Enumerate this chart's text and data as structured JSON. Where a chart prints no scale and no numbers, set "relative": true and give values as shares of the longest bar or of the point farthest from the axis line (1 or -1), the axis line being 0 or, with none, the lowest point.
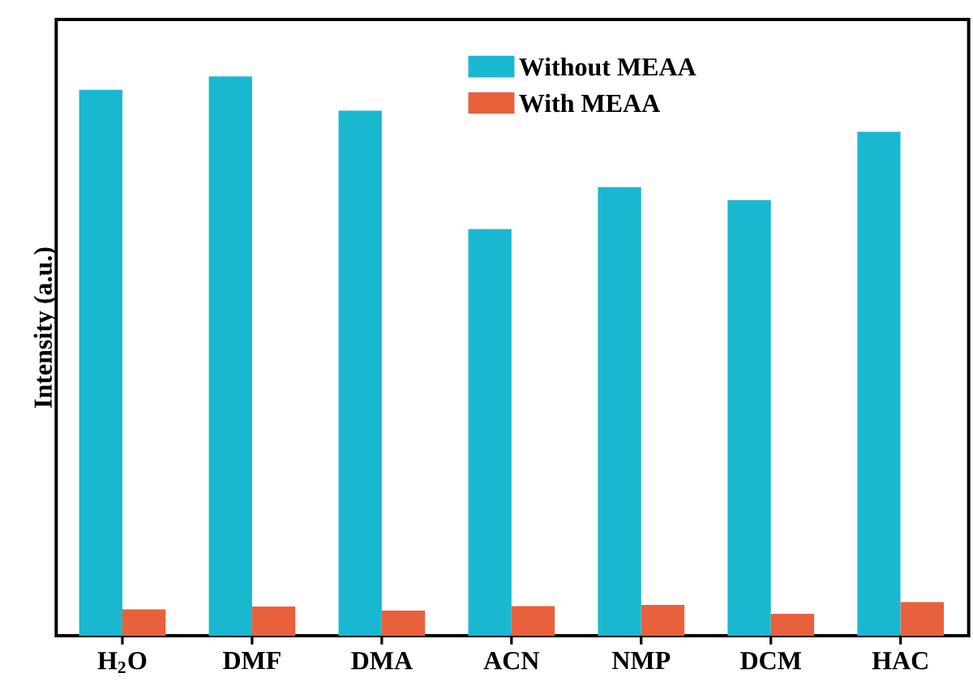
{
  "chart_data": {
    "type": "bar",
    "relative": true,
    "ylabel": "Intensity (a.u.)",
    "categories": [
      "H$_{2}$O",
      "DMF",
      "DMA",
      "ACN",
      "NMP",
      "DCM",
      "HAC"
    ],
    "series": [
      {
        "name": "Without MEAA",
        "color": "#1ab8d0",
        "values": [
          0.976,
          1,
          0.939,
          0.727,
          0.802,
          0.779,
          0.901
        ]
      },
      {
        "name": "With MEAA",
        "color": "#e8613c",
        "values": [
          0.047,
          0.052,
          0.045,
          0.053,
          0.055,
          0.039,
          0.06
        ]
      }
    ],
    "legend": "top right",
    "grid": false
  }
}
